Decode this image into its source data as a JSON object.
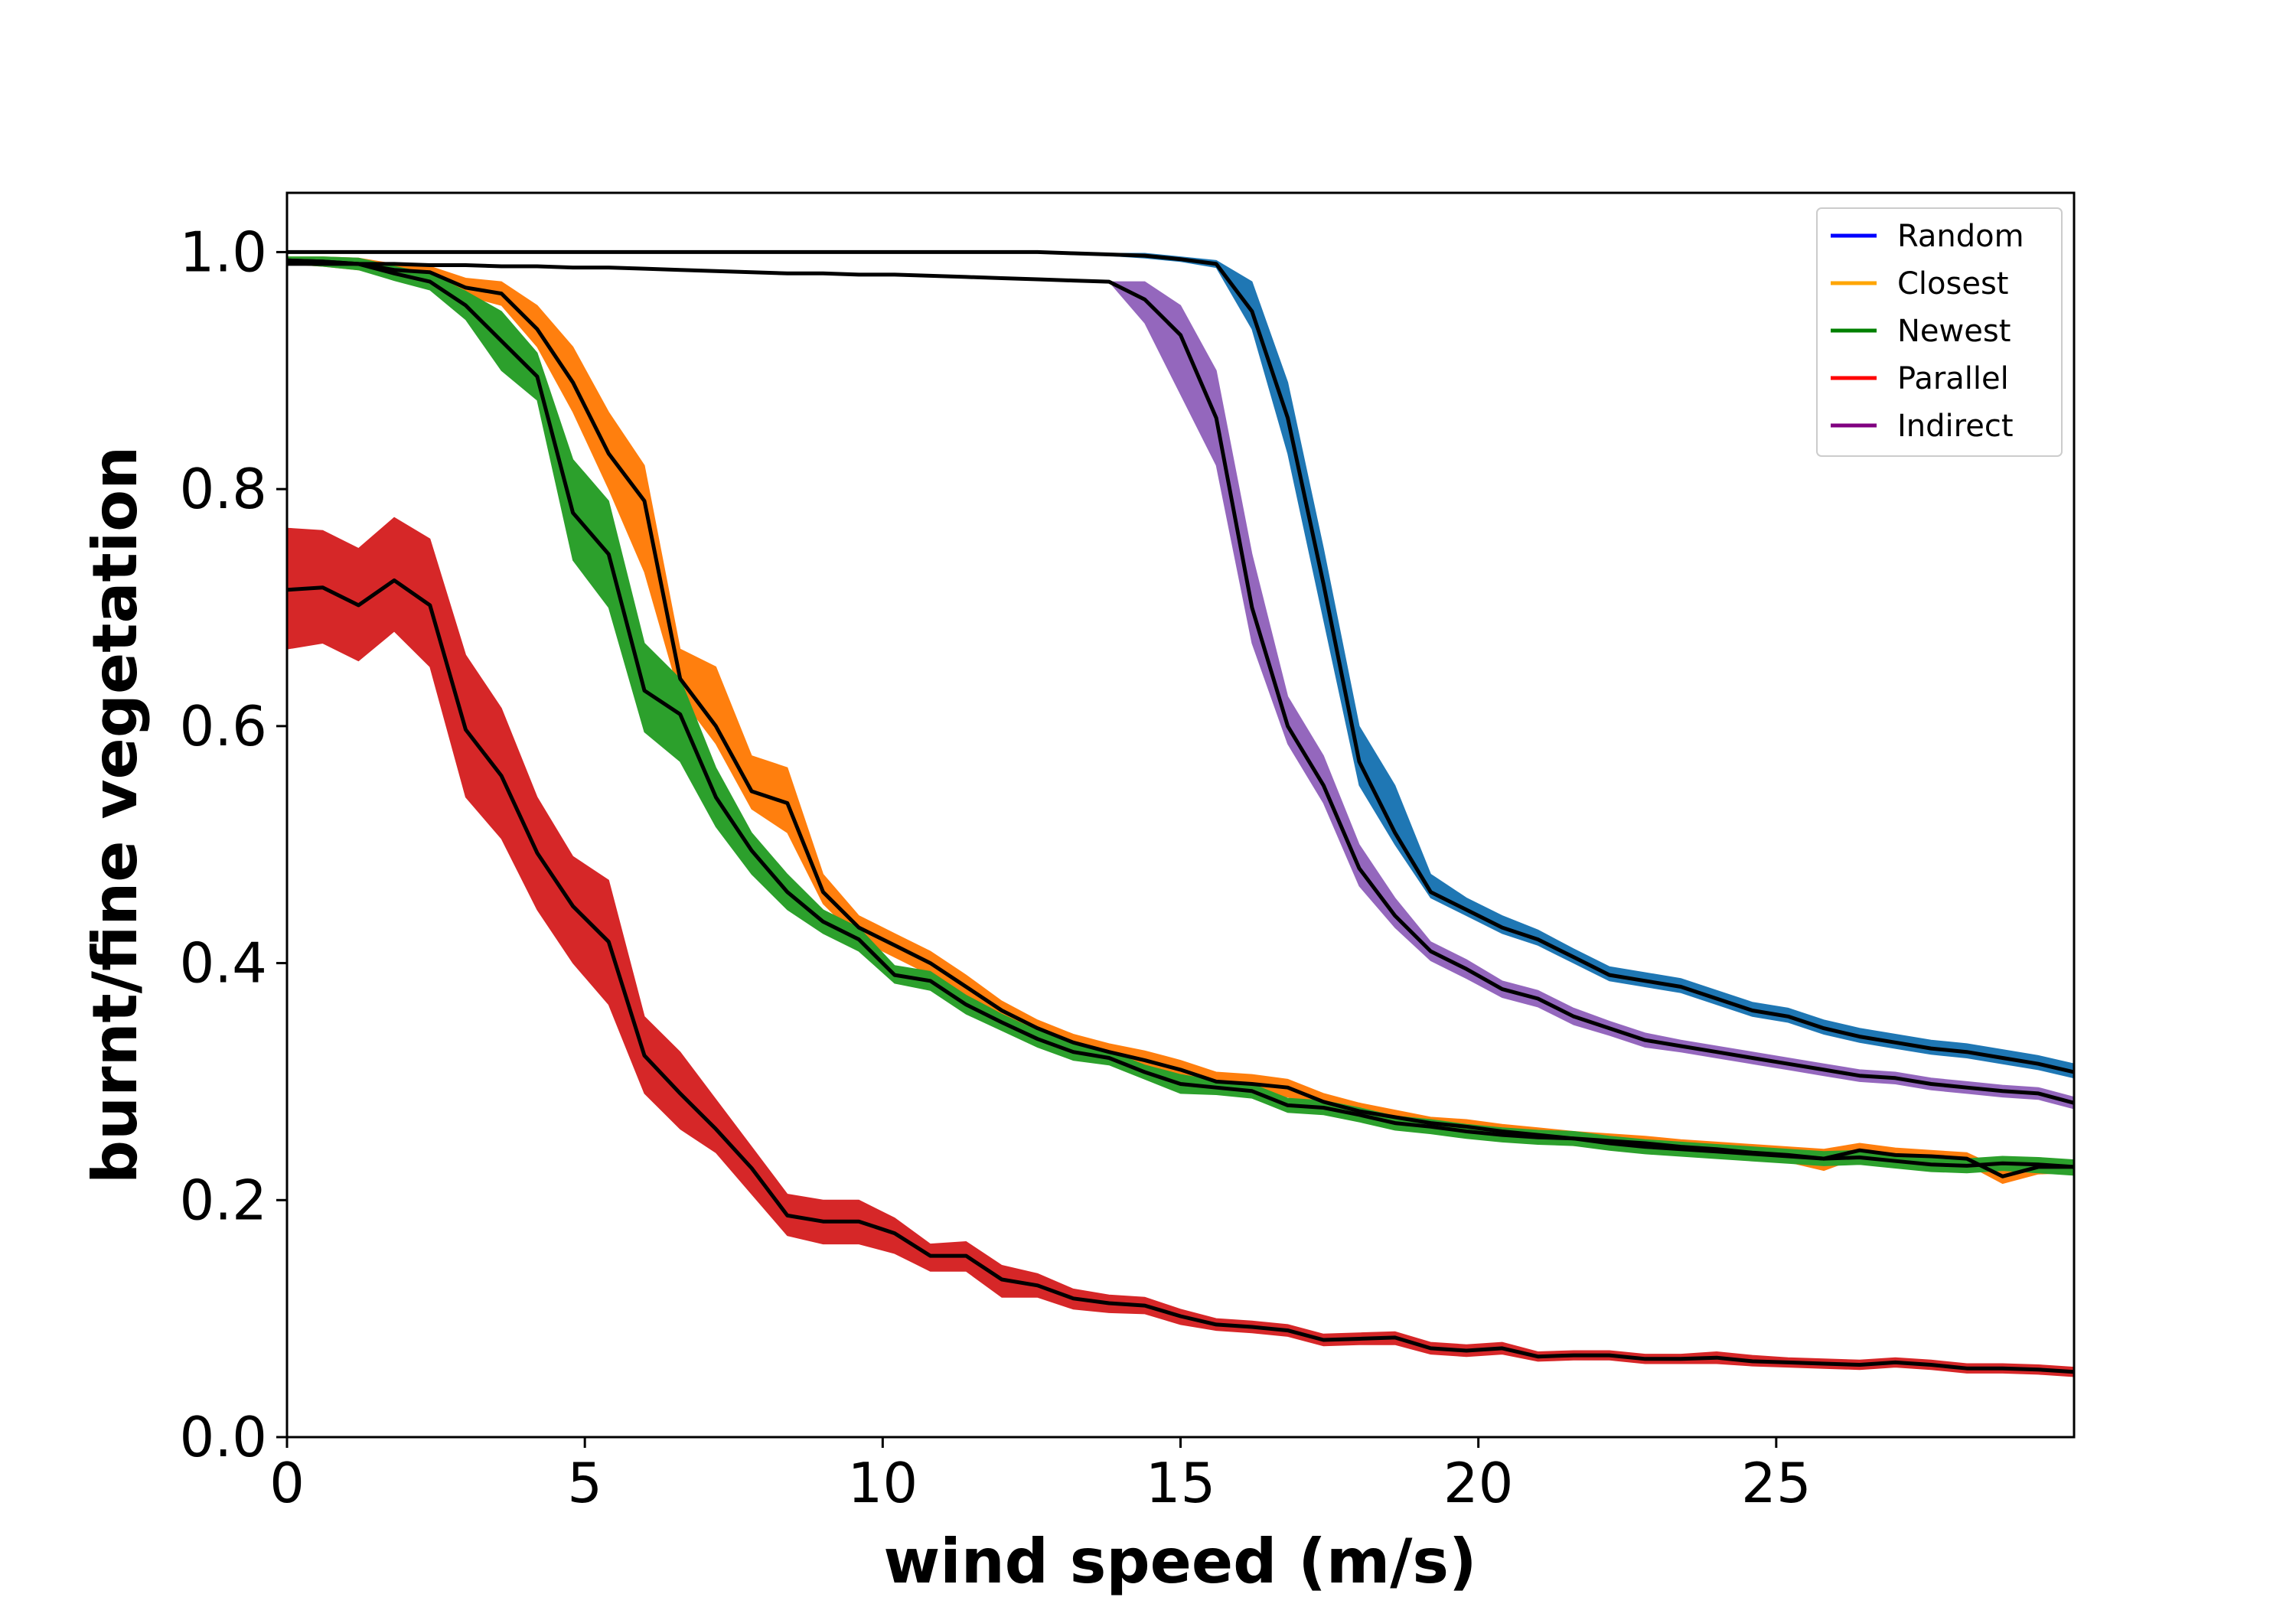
{
  "chart_data": {
    "type": "line",
    "title": "",
    "xlabel": "wind speed (m/s)",
    "ylabel": "burnt/fine vegetation",
    "xlim": [
      0,
      30
    ],
    "ylim": [
      0,
      1.05
    ],
    "xticks": [
      0,
      5,
      10,
      15,
      20,
      25
    ],
    "yticks": [
      0.0,
      0.2,
      0.4,
      0.6,
      0.8,
      1.0
    ],
    "xtick_labels": [
      "0",
      "5",
      "10",
      "15",
      "20",
      "25"
    ],
    "ytick_labels": [
      "0.0",
      "0.2",
      "0.4",
      "0.6",
      "0.8",
      "1.0"
    ],
    "grid": false,
    "legend_position": "top-right",
    "x": [
      0.0,
      0.6,
      1.2,
      1.8,
      2.4,
      3.0,
      3.6,
      4.2,
      4.8,
      5.4,
      6.0,
      6.6,
      7.2,
      7.8,
      8.4,
      9.0,
      9.6,
      10.2,
      10.8,
      11.4,
      12.0,
      12.6,
      13.2,
      13.8,
      14.4,
      15.0,
      15.6,
      16.2,
      16.8,
      17.4,
      18.0,
      18.6,
      19.2,
      19.8,
      20.4,
      21.0,
      21.6,
      22.2,
      22.8,
      23.4,
      24.0,
      24.6,
      25.2,
      25.8,
      26.4,
      27.0,
      27.6,
      28.2,
      28.8,
      29.4,
      30.0
    ],
    "series": [
      {
        "name": "Random",
        "legend_color": "#0000ff",
        "fill_color": "#1f77b4",
        "mean": [
          1.0,
          1.0,
          1.0,
          1.0,
          1.0,
          1.0,
          1.0,
          1.0,
          1.0,
          1.0,
          1.0,
          1.0,
          1.0,
          1.0,
          1.0,
          1.0,
          1.0,
          1.0,
          1.0,
          1.0,
          1.0,
          1.0,
          0.999,
          0.998,
          0.997,
          0.994,
          0.99,
          0.95,
          0.86,
          0.72,
          0.57,
          0.51,
          0.46,
          0.445,
          0.43,
          0.42,
          0.405,
          0.39,
          0.385,
          0.38,
          0.37,
          0.36,
          0.355,
          0.345,
          0.338,
          0.333,
          0.328,
          0.325,
          0.32,
          0.315,
          0.308
        ],
        "low": [
          1.0,
          1.0,
          1.0,
          1.0,
          1.0,
          1.0,
          1.0,
          1.0,
          1.0,
          1.0,
          1.0,
          1.0,
          1.0,
          1.0,
          1.0,
          1.0,
          1.0,
          1.0,
          1.0,
          1.0,
          1.0,
          1.0,
          0.998,
          0.997,
          0.995,
          0.992,
          0.987,
          0.935,
          0.83,
          0.69,
          0.55,
          0.5,
          0.455,
          0.44,
          0.425,
          0.415,
          0.4,
          0.385,
          0.38,
          0.375,
          0.365,
          0.355,
          0.35,
          0.34,
          0.333,
          0.328,
          0.323,
          0.32,
          0.315,
          0.31,
          0.303
        ],
        "high": [
          1.0,
          1.0,
          1.0,
          1.0,
          1.0,
          1.0,
          1.0,
          1.0,
          1.0,
          1.0,
          1.0,
          1.0,
          1.0,
          1.0,
          1.0,
          1.0,
          1.0,
          1.0,
          1.0,
          1.0,
          1.0,
          1.0,
          1.0,
          0.999,
          0.999,
          0.996,
          0.993,
          0.975,
          0.89,
          0.75,
          0.6,
          0.55,
          0.475,
          0.455,
          0.44,
          0.428,
          0.412,
          0.397,
          0.392,
          0.387,
          0.377,
          0.367,
          0.362,
          0.352,
          0.345,
          0.34,
          0.335,
          0.332,
          0.327,
          0.322,
          0.315
        ]
      },
      {
        "name": "Closest",
        "legend_color": "#ffa500",
        "fill_color": "#ff7f0e",
        "mean": [
          0.993,
          0.992,
          0.99,
          0.985,
          0.983,
          0.97,
          0.965,
          0.935,
          0.89,
          0.83,
          0.79,
          0.64,
          0.6,
          0.545,
          0.535,
          0.46,
          0.43,
          0.415,
          0.4,
          0.38,
          0.36,
          0.345,
          0.333,
          0.325,
          0.318,
          0.31,
          0.3,
          0.298,
          0.295,
          0.283,
          0.275,
          0.27,
          0.265,
          0.262,
          0.258,
          0.255,
          0.252,
          0.25,
          0.248,
          0.245,
          0.243,
          0.24,
          0.238,
          0.235,
          0.242,
          0.238,
          0.237,
          0.235,
          0.22,
          0.228,
          0.228
        ],
        "low": [
          0.99,
          0.988,
          0.985,
          0.98,
          0.978,
          0.963,
          0.955,
          0.92,
          0.865,
          0.8,
          0.73,
          0.625,
          0.585,
          0.53,
          0.51,
          0.45,
          0.42,
          0.405,
          0.39,
          0.37,
          0.352,
          0.337,
          0.326,
          0.318,
          0.31,
          0.302,
          0.292,
          0.29,
          0.287,
          0.276,
          0.268,
          0.264,
          0.26,
          0.256,
          0.252,
          0.249,
          0.246,
          0.244,
          0.242,
          0.24,
          0.238,
          0.234,
          0.232,
          0.225,
          0.236,
          0.232,
          0.232,
          0.23,
          0.214,
          0.222,
          0.223
        ],
        "high": [
          0.996,
          0.996,
          0.995,
          0.99,
          0.988,
          0.978,
          0.975,
          0.955,
          0.92,
          0.865,
          0.82,
          0.665,
          0.65,
          0.575,
          0.565,
          0.475,
          0.44,
          0.425,
          0.41,
          0.39,
          0.368,
          0.352,
          0.34,
          0.332,
          0.326,
          0.318,
          0.308,
          0.306,
          0.302,
          0.29,
          0.282,
          0.276,
          0.27,
          0.268,
          0.264,
          0.261,
          0.258,
          0.256,
          0.254,
          0.251,
          0.249,
          0.247,
          0.245,
          0.243,
          0.248,
          0.244,
          0.242,
          0.24,
          0.226,
          0.234,
          0.233
        ]
      },
      {
        "name": "Newest",
        "legend_color": "#008000",
        "fill_color": "#2ca02c",
        "mean": [
          0.993,
          0.992,
          0.99,
          0.982,
          0.975,
          0.955,
          0.925,
          0.895,
          0.78,
          0.745,
          0.63,
          0.61,
          0.54,
          0.495,
          0.46,
          0.435,
          0.42,
          0.39,
          0.385,
          0.365,
          0.35,
          0.336,
          0.325,
          0.32,
          0.308,
          0.298,
          0.295,
          0.292,
          0.28,
          0.278,
          0.272,
          0.265,
          0.262,
          0.258,
          0.255,
          0.253,
          0.252,
          0.248,
          0.245,
          0.243,
          0.241,
          0.239,
          0.237,
          0.235,
          0.236,
          0.233,
          0.23,
          0.229,
          0.231,
          0.23,
          0.228
        ],
        "low": [
          0.99,
          0.988,
          0.985,
          0.976,
          0.968,
          0.943,
          0.9,
          0.875,
          0.74,
          0.7,
          0.595,
          0.57,
          0.515,
          0.475,
          0.445,
          0.425,
          0.41,
          0.383,
          0.377,
          0.357,
          0.343,
          0.329,
          0.318,
          0.314,
          0.302,
          0.29,
          0.289,
          0.286,
          0.274,
          0.272,
          0.266,
          0.259,
          0.256,
          0.252,
          0.249,
          0.247,
          0.246,
          0.242,
          0.239,
          0.237,
          0.235,
          0.233,
          0.231,
          0.229,
          0.23,
          0.227,
          0.224,
          0.223,
          0.225,
          0.223,
          0.221
        ],
        "high": [
          0.996,
          0.996,
          0.995,
          0.988,
          0.982,
          0.967,
          0.95,
          0.915,
          0.825,
          0.79,
          0.67,
          0.64,
          0.565,
          0.51,
          0.475,
          0.445,
          0.43,
          0.398,
          0.393,
          0.373,
          0.357,
          0.343,
          0.332,
          0.326,
          0.314,
          0.306,
          0.301,
          0.298,
          0.286,
          0.284,
          0.278,
          0.271,
          0.268,
          0.264,
          0.261,
          0.259,
          0.258,
          0.254,
          0.251,
          0.249,
          0.247,
          0.245,
          0.243,
          0.241,
          0.242,
          0.239,
          0.236,
          0.235,
          0.237,
          0.236,
          0.234
        ]
      },
      {
        "name": "Parallel",
        "legend_color": "#ff0000",
        "fill_color": "#d62728",
        "mean": [
          0.715,
          0.717,
          0.702,
          0.723,
          0.702,
          0.597,
          0.558,
          0.493,
          0.448,
          0.418,
          0.322,
          0.29,
          0.26,
          0.227,
          0.187,
          0.182,
          0.182,
          0.172,
          0.153,
          0.153,
          0.133,
          0.128,
          0.117,
          0.113,
          0.111,
          0.102,
          0.095,
          0.093,
          0.09,
          0.082,
          0.083,
          0.084,
          0.075,
          0.073,
          0.075,
          0.068,
          0.069,
          0.069,
          0.066,
          0.066,
          0.067,
          0.064,
          0.063,
          0.062,
          0.061,
          0.063,
          0.061,
          0.058,
          0.058,
          0.057,
          0.055
        ],
        "low": [
          0.665,
          0.67,
          0.655,
          0.68,
          0.65,
          0.54,
          0.505,
          0.445,
          0.4,
          0.365,
          0.29,
          0.26,
          0.24,
          0.205,
          0.17,
          0.163,
          0.163,
          0.155,
          0.14,
          0.14,
          0.118,
          0.118,
          0.108,
          0.105,
          0.104,
          0.095,
          0.09,
          0.088,
          0.085,
          0.077,
          0.078,
          0.078,
          0.07,
          0.068,
          0.07,
          0.064,
          0.065,
          0.065,
          0.062,
          0.062,
          0.062,
          0.06,
          0.059,
          0.058,
          0.057,
          0.059,
          0.057,
          0.054,
          0.054,
          0.053,
          0.051
        ],
        "high": [
          0.767,
          0.765,
          0.75,
          0.776,
          0.758,
          0.66,
          0.615,
          0.54,
          0.49,
          0.47,
          0.355,
          0.325,
          0.285,
          0.245,
          0.205,
          0.2,
          0.2,
          0.185,
          0.163,
          0.165,
          0.145,
          0.138,
          0.125,
          0.12,
          0.118,
          0.108,
          0.1,
          0.098,
          0.095,
          0.087,
          0.088,
          0.089,
          0.08,
          0.078,
          0.08,
          0.072,
          0.073,
          0.073,
          0.07,
          0.07,
          0.072,
          0.069,
          0.067,
          0.066,
          0.065,
          0.067,
          0.065,
          0.062,
          0.062,
          0.061,
          0.059
        ]
      },
      {
        "name": "Indirect",
        "legend_color": "#800080",
        "fill_color": "#9467bd",
        "mean": [
          0.99,
          0.99,
          0.99,
          0.99,
          0.989,
          0.989,
          0.988,
          0.988,
          0.987,
          0.987,
          0.986,
          0.985,
          0.984,
          0.983,
          0.982,
          0.982,
          0.981,
          0.981,
          0.98,
          0.979,
          0.978,
          0.977,
          0.976,
          0.975,
          0.96,
          0.93,
          0.86,
          0.7,
          0.6,
          0.55,
          0.48,
          0.44,
          0.41,
          0.395,
          0.378,
          0.37,
          0.355,
          0.345,
          0.335,
          0.33,
          0.325,
          0.32,
          0.315,
          0.31,
          0.305,
          0.303,
          0.298,
          0.295,
          0.292,
          0.29,
          0.282
        ],
        "low": [
          0.99,
          0.99,
          0.99,
          0.99,
          0.989,
          0.989,
          0.988,
          0.988,
          0.987,
          0.987,
          0.986,
          0.985,
          0.984,
          0.983,
          0.982,
          0.982,
          0.981,
          0.981,
          0.98,
          0.979,
          0.978,
          0.977,
          0.976,
          0.975,
          0.94,
          0.88,
          0.82,
          0.67,
          0.585,
          0.535,
          0.465,
          0.43,
          0.402,
          0.387,
          0.371,
          0.363,
          0.348,
          0.339,
          0.329,
          0.325,
          0.32,
          0.315,
          0.31,
          0.305,
          0.3,
          0.298,
          0.293,
          0.29,
          0.287,
          0.285,
          0.277
        ],
        "high": [
          0.99,
          0.99,
          0.99,
          0.99,
          0.989,
          0.989,
          0.988,
          0.988,
          0.987,
          0.987,
          0.986,
          0.985,
          0.984,
          0.983,
          0.982,
          0.982,
          0.981,
          0.981,
          0.98,
          0.979,
          0.978,
          0.977,
          0.976,
          0.975,
          0.975,
          0.955,
          0.9,
          0.745,
          0.625,
          0.575,
          0.5,
          0.455,
          0.418,
          0.403,
          0.385,
          0.377,
          0.362,
          0.351,
          0.341,
          0.335,
          0.33,
          0.325,
          0.32,
          0.315,
          0.31,
          0.308,
          0.303,
          0.3,
          0.297,
          0.295,
          0.287
        ]
      }
    ]
  }
}
